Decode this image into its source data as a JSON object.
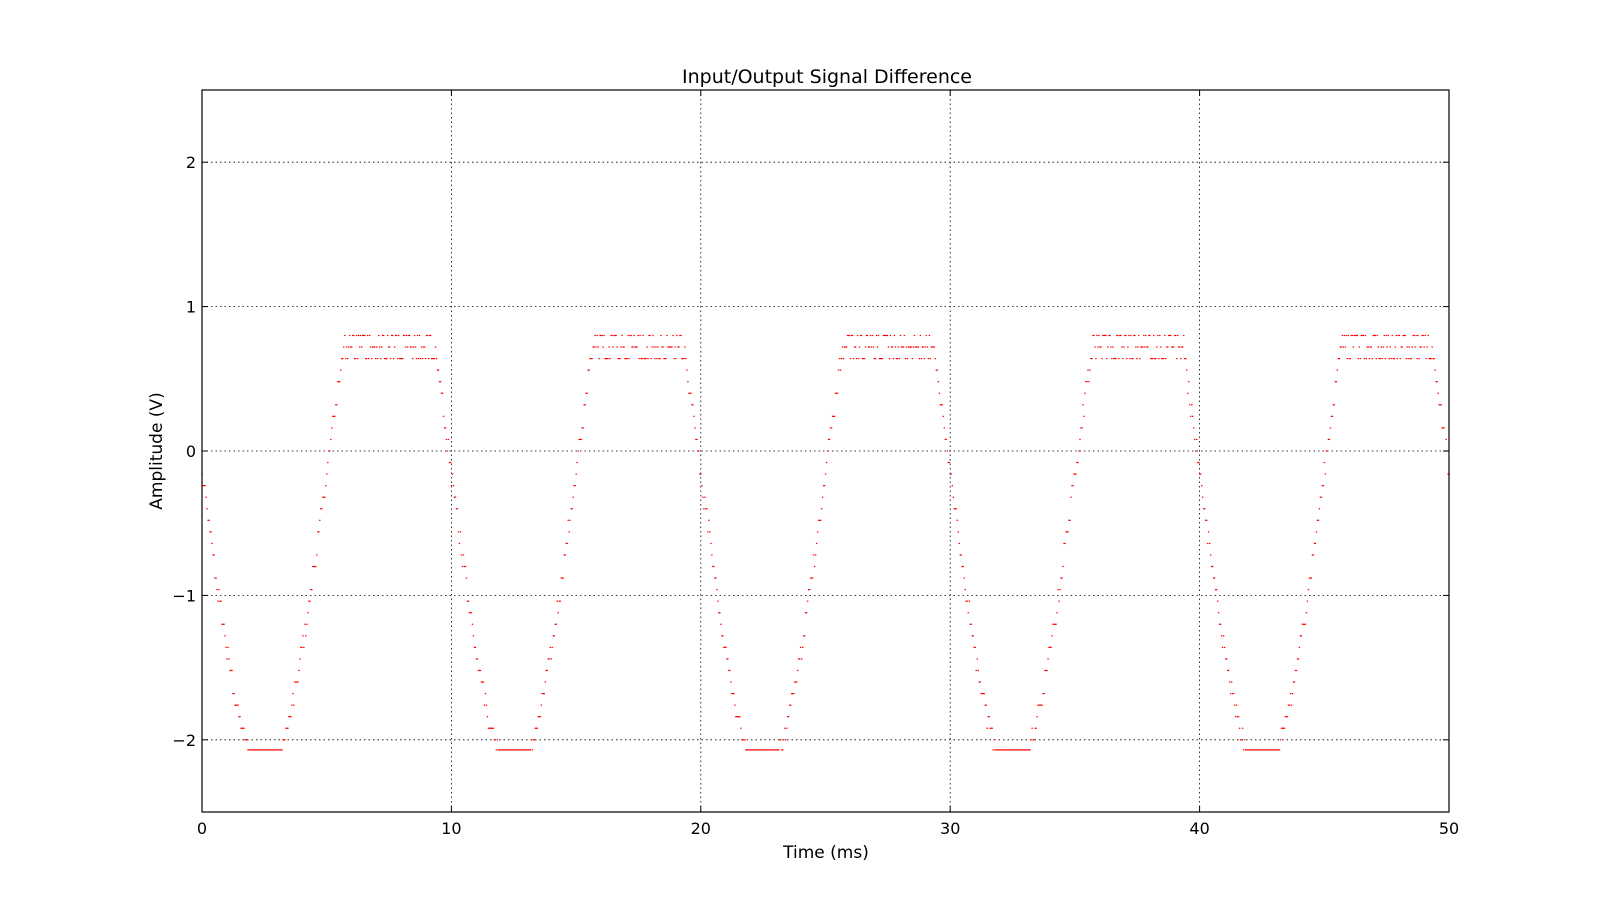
{
  "chart_data": {
    "type": "scatter",
    "title": "Input/Output Signal Difference",
    "xlabel": "Time (ms)",
    "ylabel": "Amplitude (V)",
    "xlim": [
      0,
      50
    ],
    "ylim": [
      -2.5,
      2.5
    ],
    "xticks": [
      0,
      10,
      20,
      30,
      40,
      50
    ],
    "xtick_labels": [
      "0",
      "10",
      "20",
      "30",
      "40",
      "50"
    ],
    "yticks": [
      -2,
      -1,
      0,
      1,
      2
    ],
    "ytick_labels": [
      "−2",
      "−1",
      "0",
      "1",
      "2"
    ],
    "grid": true,
    "legend": "none",
    "marker": "point",
    "series_color": "#ff0000",
    "signal": {
      "period_ms": 10,
      "shape": "clipped sine, negative half first each period",
      "min": -2.07,
      "max": 0.8,
      "upper_plateau_levels": [
        0.8,
        0.72,
        0.64
      ],
      "sample_spacing_ms": 0.04
    }
  }
}
